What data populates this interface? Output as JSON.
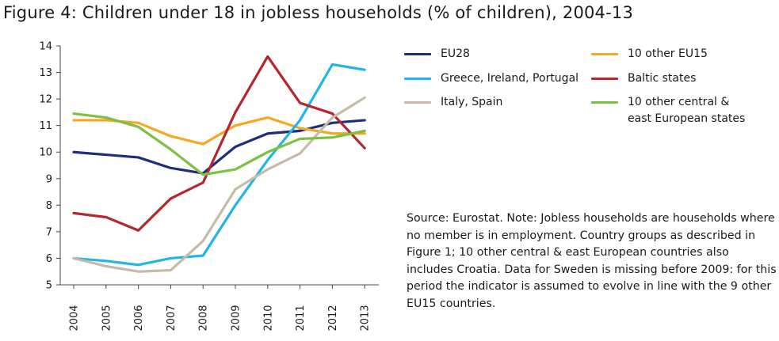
{
  "chart_data": {
    "type": "line",
    "title": "Figure 4: Children under 18 in jobless households (% of children), 2004-13",
    "xlabel": "",
    "ylabel": "",
    "ylim": [
      5,
      14
    ],
    "yticks": [
      "5",
      "6",
      "7",
      "8",
      "9",
      "10",
      "11",
      "12",
      "13",
      "14"
    ],
    "categories": [
      "2004",
      "2005",
      "2006",
      "2007",
      "2008",
      "2009",
      "2010",
      "2011",
      "2012",
      "2013"
    ],
    "series": [
      {
        "name": "EU28",
        "color": "#1f2e7a",
        "values": [
          10.0,
          9.9,
          9.8,
          9.4,
          9.2,
          10.2,
          10.7,
          10.8,
          11.1,
          11.2
        ]
      },
      {
        "name": "10 other EU15",
        "color": "#f5a623",
        "values": [
          11.2,
          11.2,
          11.1,
          10.6,
          10.3,
          11.0,
          11.3,
          10.9,
          10.7,
          10.7
        ]
      },
      {
        "name": "Greece, Ireland, Portugal",
        "color": "#22b5e6",
        "values": [
          6.0,
          5.9,
          5.75,
          6.0,
          6.1,
          8.0,
          9.7,
          11.2,
          13.3,
          13.1
        ]
      },
      {
        "name": "Baltic states",
        "color": "#b5262d",
        "values": [
          7.7,
          7.55,
          7.05,
          8.25,
          8.85,
          11.5,
          13.6,
          11.85,
          11.45,
          10.15
        ]
      },
      {
        "name": "Italy, Spain",
        "color": "#c6bba8",
        "values": [
          6.0,
          5.7,
          5.5,
          5.55,
          6.65,
          8.6,
          9.35,
          9.95,
          11.3,
          12.05
        ]
      },
      {
        "name": "10 other central & east European states",
        "color": "#7cc142",
        "values": [
          11.45,
          11.3,
          10.95,
          10.1,
          9.15,
          9.35,
          10.0,
          10.5,
          10.55,
          10.8
        ]
      }
    ]
  },
  "legend": {
    "eu28": "EU28",
    "other_eu15": "10 other EU15",
    "greece_ireland_portugal": "Greece, Ireland, Portugal",
    "baltic": "Baltic states",
    "italy_spain": "Italy, Spain",
    "cee_line1": "10 other central &",
    "cee_line2": "east European states"
  },
  "note": {
    "text": "Source: Eurostat. Note: Jobless households are households where no member is in employment. Country groups as described in Figure 1; 10 other central & east European countries also includes Croatia. Data for Sweden is missing before 2009: for this period the indicator is assumed to evolve in line with the 9 other EU15 countries."
  },
  "colors": {
    "axis": "#444444",
    "eu28": "#1f2e7a",
    "other_eu15": "#f5a623",
    "greece_ireland_portugal": "#22b5e6",
    "baltic": "#b5262d",
    "italy_spain": "#c6bba8",
    "cee": "#7cc142"
  }
}
